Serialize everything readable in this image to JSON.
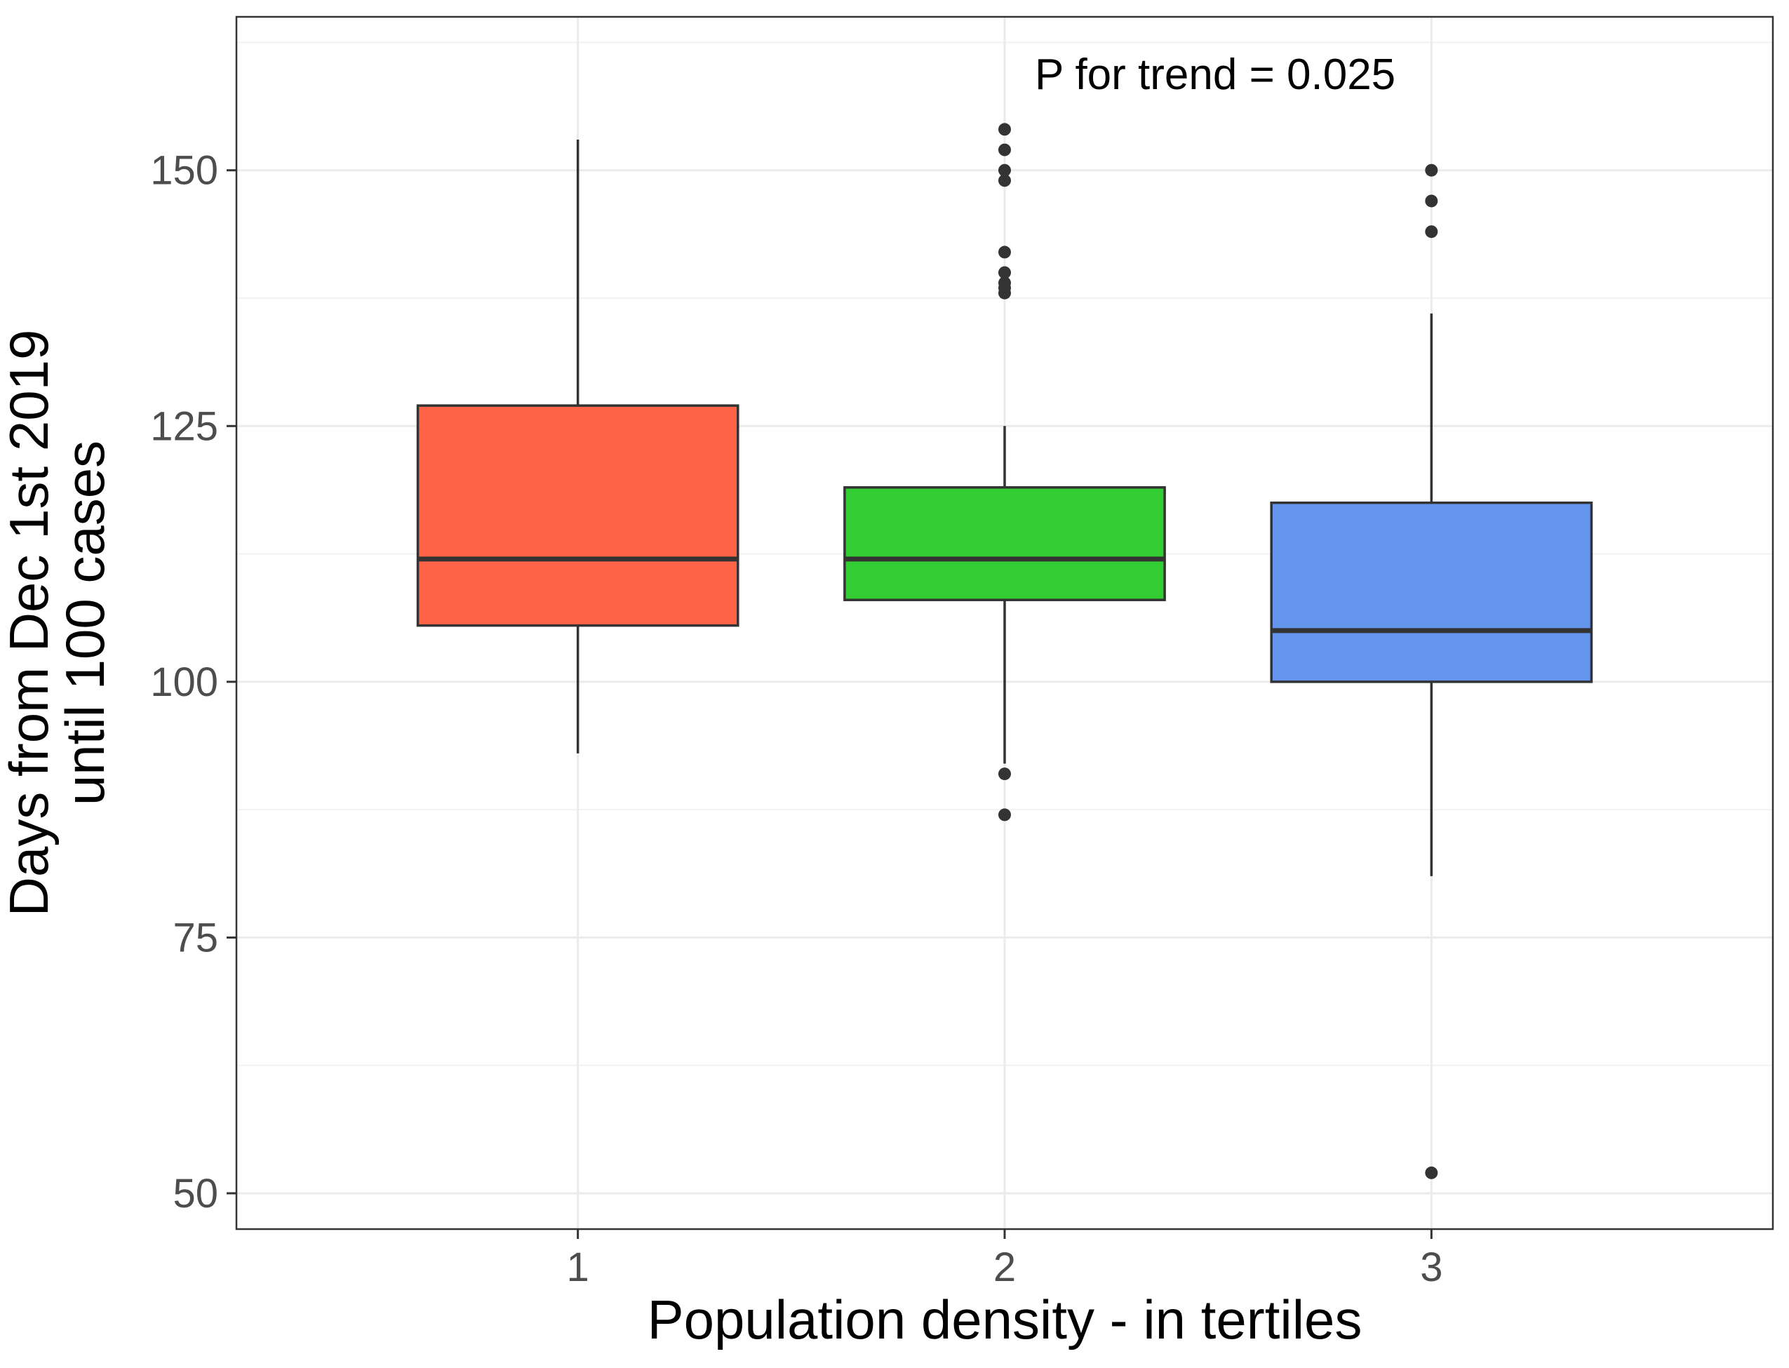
{
  "chart_data": {
    "type": "box",
    "xlabel": "Population density - in tertiles",
    "ylabel_lines": [
      "Days from Dec 1st 2019",
      "until 100 cases"
    ],
    "annotation": "P for trend = 0.025",
    "categories": [
      "1",
      "2",
      "3"
    ],
    "y_ticks": [
      50,
      75,
      100,
      125,
      150
    ],
    "ylim": [
      46.5,
      165
    ],
    "grid": true,
    "colors": {
      "panel_border": "#333333",
      "grid_major": "#ebebeb",
      "grid_minor": "#f2f2f2",
      "box_outline": "#333333",
      "outlier": "#333333"
    },
    "boxes": [
      {
        "category": "1",
        "fill": "#ff6347",
        "whisker_low": 93,
        "q1": 105.5,
        "median": 112,
        "q3": 127,
        "whisker_high": 153,
        "outliers": []
      },
      {
        "category": "2",
        "fill": "#32cd32",
        "whisker_low": 92,
        "q1": 108,
        "median": 112,
        "q3": 119,
        "whisker_high": 125,
        "outliers": [
          87,
          91,
          138,
          138.5,
          139,
          140,
          142,
          149,
          150,
          152,
          154
        ]
      },
      {
        "category": "3",
        "fill": "#6495ed",
        "whisker_low": 81,
        "q1": 100,
        "median": 105,
        "q3": 117.5,
        "whisker_high": 136,
        "outliers": [
          52,
          144,
          147,
          150
        ]
      }
    ]
  }
}
